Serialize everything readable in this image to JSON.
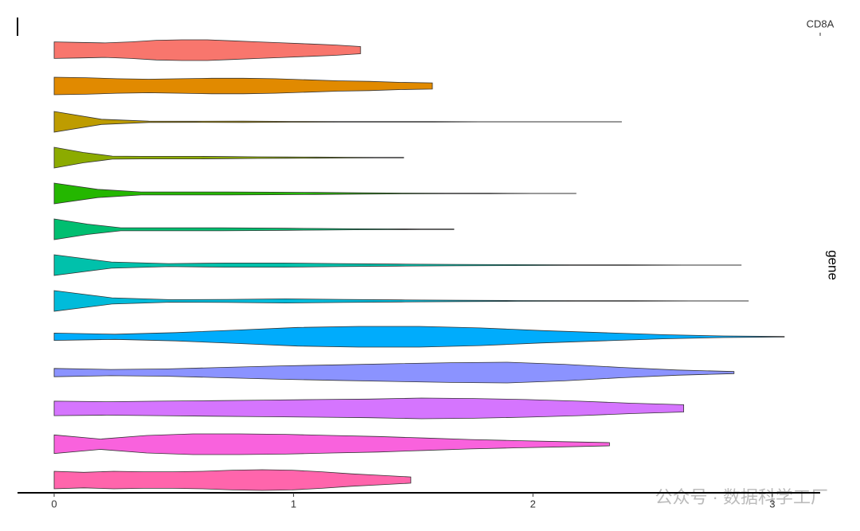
{
  "chart_data": {
    "type": "violin",
    "panel_label": "CD8A",
    "strip_label": "gene",
    "watermark": "公众号 · 数据科学工厂",
    "xlim": [
      -0.153,
      3.2
    ],
    "xticks": [
      0,
      1,
      2,
      3
    ],
    "series": [
      {
        "color": "#F8766D",
        "max": 1.28,
        "density": [
          0.8,
          0.75,
          0.7,
          0.8,
          0.95,
          1,
          1,
          0.9,
          0.8,
          0.7,
          0.6,
          0.5,
          0.35
        ]
      },
      {
        "color": "#E18A00",
        "max": 1.58,
        "density": [
          0.85,
          0.8,
          0.7,
          0.65,
          0.7,
          0.75,
          0.75,
          0.7,
          0.6,
          0.5,
          0.45,
          0.35,
          0.3
        ]
      },
      {
        "color": "#BE9C00",
        "max": 2.37,
        "density": [
          1,
          0.25,
          0.06,
          0.05,
          0.06,
          0.04,
          0.03,
          0.02,
          0.02,
          0.01,
          0.01,
          0.01,
          0.01
        ]
      },
      {
        "color": "#8CAB00",
        "max": 1.46,
        "density": [
          1,
          0.5,
          0.15,
          0.12,
          0.12,
          0.12,
          0.1,
          0.08,
          0.06,
          0.05,
          0.04,
          0.03,
          0.02
        ]
      },
      {
        "color": "#24B700",
        "max": 2.18,
        "density": [
          1,
          0.4,
          0.15,
          0.15,
          0.15,
          0.12,
          0.1,
          0.06,
          0.04,
          0.03,
          0.02,
          0.01,
          0.01
        ]
      },
      {
        "color": "#00BE70",
        "max": 1.67,
        "density": [
          1,
          0.5,
          0.15,
          0.15,
          0.15,
          0.15,
          0.12,
          0.1,
          0.08,
          0.05,
          0.04,
          0.03,
          0.02
        ]
      },
      {
        "color": "#00C1AB",
        "max": 2.87,
        "density": [
          1,
          0.3,
          0.15,
          0.2,
          0.2,
          0.15,
          0.1,
          0.07,
          0.05,
          0.03,
          0.02,
          0.01,
          0.01
        ]
      },
      {
        "color": "#00BBDA",
        "max": 2.9,
        "density": [
          1,
          0.3,
          0.12,
          0.15,
          0.2,
          0.15,
          0.1,
          0.06,
          0.04,
          0.03,
          0.02,
          0.01,
          0.01
        ]
      },
      {
        "color": "#00ACFC",
        "max": 3.05,
        "density": [
          0.35,
          0.25,
          0.4,
          0.65,
          0.9,
          1,
          1,
          0.85,
          0.6,
          0.4,
          0.2,
          0.08,
          0.02
        ]
      },
      {
        "color": "#8B93FF",
        "max": 2.84,
        "density": [
          0.4,
          0.3,
          0.35,
          0.5,
          0.65,
          0.75,
          0.85,
          0.95,
          1,
          0.8,
          0.5,
          0.25,
          0.1
        ]
      },
      {
        "color": "#D575FE",
        "max": 2.63,
        "density": [
          0.7,
          0.65,
          0.7,
          0.75,
          0.8,
          0.85,
          0.9,
          1,
          0.95,
          0.85,
          0.7,
          0.5,
          0.35
        ]
      },
      {
        "color": "#F962DD",
        "max": 2.32,
        "density": [
          0.9,
          0.5,
          0.85,
          1,
          1,
          0.95,
          0.85,
          0.75,
          0.6,
          0.45,
          0.35,
          0.25,
          0.15
        ]
      },
      {
        "color": "#FF65AC",
        "max": 1.49,
        "density": [
          0.85,
          0.75,
          0.85,
          0.8,
          0.8,
          0.85,
          0.95,
          1,
          0.95,
          0.8,
          0.6,
          0.45,
          0.3
        ]
      }
    ]
  }
}
